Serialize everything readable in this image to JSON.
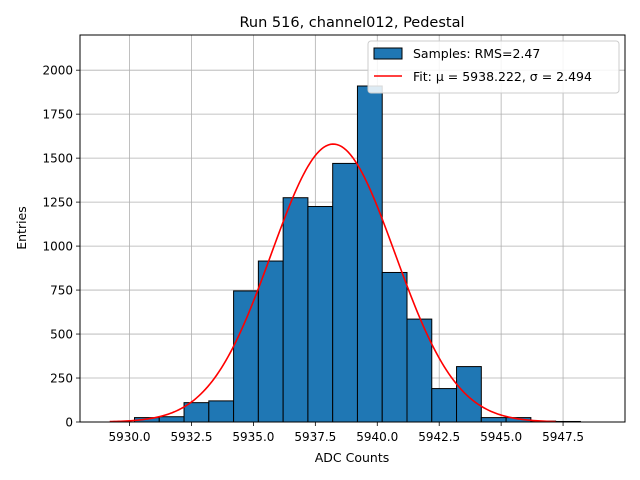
{
  "chart_data": {
    "type": "bar",
    "title": "Run 516, channel012, Pedestal",
    "xlabel": "ADC Counts",
    "ylabel": "Entries",
    "xlim": [
      5928.0,
      5950.0
    ],
    "ylim": [
      0,
      2200
    ],
    "xticks": [
      5930.0,
      5932.5,
      5935.0,
      5937.5,
      5940.0,
      5942.5,
      5945.0,
      5947.5
    ],
    "xtick_labels": [
      "5930.0",
      "5932.5",
      "5935.0",
      "5937.5",
      "5940.0",
      "5942.5",
      "5945.0",
      "5947.5"
    ],
    "yticks": [
      0,
      250,
      500,
      750,
      1000,
      1250,
      1500,
      1750,
      2000
    ],
    "ytick_labels": [
      "0",
      "250",
      "500",
      "750",
      "1000",
      "1250",
      "1500",
      "1750",
      "2000"
    ],
    "grid": true,
    "legend_position": "top-right",
    "histogram": {
      "name": "Samples: RMS=2.47",
      "color": "#1f77b4",
      "edge_color": "#000000",
      "bin_edges": [
        5930.2,
        5931.2,
        5932.2,
        5933.2,
        5934.2,
        5935.2,
        5936.2,
        5937.2,
        5938.2,
        5939.2,
        5940.2,
        5941.2,
        5942.2,
        5943.2,
        5944.2,
        5945.2,
        5946.2,
        5947.2,
        5948.2
      ],
      "counts": [
        25,
        30,
        110,
        120,
        745,
        915,
        1275,
        1225,
        1470,
        1910,
        850,
        585,
        190,
        315,
        25,
        25,
        5,
        3
      ]
    },
    "fit": {
      "name": "Fit: μ = 5938.222, σ = 2.494",
      "color": "#ff0000",
      "mu": 5938.222,
      "sigma": 2.494,
      "amplitude": 1580,
      "x_range": [
        5929.2,
        5947.2
      ]
    }
  }
}
